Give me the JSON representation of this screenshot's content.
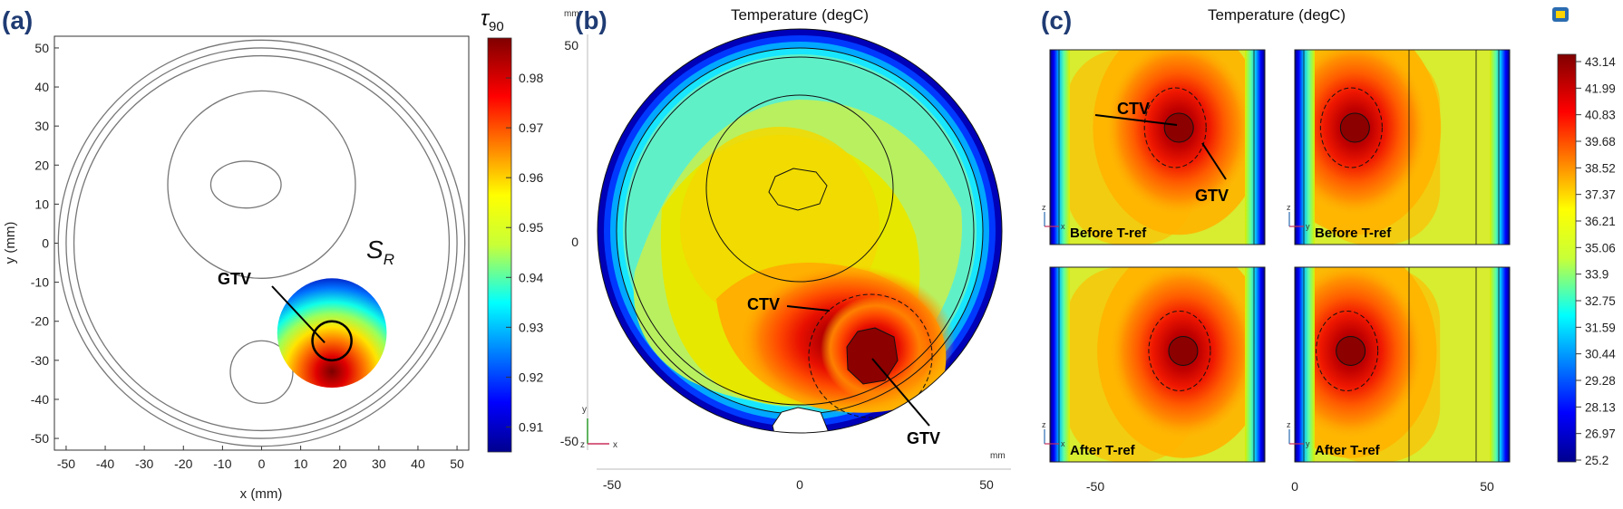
{
  "panels": {
    "a": {
      "letter": "(a)",
      "xlabel": "x (mm)",
      "ylabel": "y (mm)",
      "xticks": [
        -50,
        -40,
        -30,
        -20,
        -10,
        0,
        10,
        20,
        30,
        40,
        50
      ],
      "yticks": [
        50,
        40,
        30,
        20,
        10,
        0,
        -10,
        -20,
        -30,
        -40,
        -50
      ],
      "xlim": [
        -53,
        53
      ],
      "ylim": [
        -53,
        53
      ],
      "gtv_label": "GTV",
      "region_label": "S",
      "region_sub": "R",
      "colorbar": {
        "title": "τ",
        "title_sub": "90",
        "ticks": [
          0.98,
          0.97,
          0.96,
          0.95,
          0.94,
          0.93,
          0.92,
          0.91
        ],
        "range": [
          0.905,
          0.988
        ]
      }
    },
    "b": {
      "letter": "(b)",
      "title": "Temperature (degC)",
      "unit": "mm",
      "yticks": [
        50,
        0,
        -50
      ],
      "xticks": [
        -50,
        0,
        50
      ],
      "ctv_label": "CTV",
      "gtv_label": "GTV",
      "axis_y": "y",
      "axis_z": "z",
      "axis_x": "x"
    },
    "c": {
      "letter": "(c)",
      "title": "Temperature (degC)",
      "xticks": [
        -50,
        0,
        50
      ],
      "ctv_label": "CTV",
      "gtv_label": "GTV",
      "subplots": [
        {
          "label": "Before T-ref",
          "axis_h": "x",
          "axis_v": "z"
        },
        {
          "label": "Before T-ref",
          "axis_h": "y",
          "axis_v": "z"
        },
        {
          "label": "After T-ref",
          "axis_h": "x",
          "axis_v": "z"
        },
        {
          "label": "After T-ref",
          "axis_h": "y",
          "axis_v": "z"
        }
      ],
      "colorbar": {
        "ticks": [
          "43.14",
          "41.99",
          "40.83",
          "39.68",
          "38.52",
          "37.37",
          "36.21",
          "35.06",
          "33.9",
          "32.75",
          "31.59",
          "30.44",
          "29.28",
          "28.13",
          "26.97",
          "25.2"
        ]
      }
    }
  },
  "chart_data": [
    {
      "type": "scatter",
      "panel": "a",
      "xlabel": "x (mm)",
      "ylabel": "y (mm)",
      "xlim": [
        -53,
        53
      ],
      "ylim": [
        -53,
        53
      ],
      "colorbar_label": "τ90",
      "colorbar_range": [
        0.905,
        0.988
      ],
      "outlines": [
        {
          "shape": "circle",
          "center": [
            0,
            0
          ],
          "radius": 52
        },
        {
          "shape": "circle",
          "center": [
            0,
            0
          ],
          "radius": 50
        },
        {
          "shape": "circle",
          "center": [
            0,
            0
          ],
          "radius": 48
        },
        {
          "shape": "circle",
          "center": [
            0,
            15
          ],
          "radius": 24
        },
        {
          "shape": "ellipse",
          "center": [
            -4,
            15
          ],
          "rx": 9,
          "ry": 6
        },
        {
          "shape": "circle",
          "center": [
            0,
            -33
          ],
          "radius": 8
        }
      ],
      "gtv": {
        "center": [
          18,
          -25
        ],
        "radius": 5
      },
      "region": {
        "center": [
          18,
          -23
        ],
        "radius": 14
      }
    },
    {
      "type": "heatmap",
      "panel": "b",
      "title": "Temperature (degC)",
      "xticks": [
        -50,
        0,
        50
      ],
      "yticks": [
        -50,
        0,
        50
      ]
    },
    {
      "type": "heatmap",
      "panel": "c",
      "title": "Temperature (degC)",
      "xticks": [
        -50,
        0,
        50
      ],
      "colorbar_ticks": [
        43.14,
        41.99,
        40.83,
        39.68,
        38.52,
        37.37,
        36.21,
        35.06,
        33.9,
        32.75,
        31.59,
        30.44,
        29.28,
        28.13,
        26.97,
        25.2
      ],
      "subplots": [
        "Before T-ref",
        "Before T-ref",
        "After T-ref",
        "After T-ref"
      ]
    }
  ],
  "colors": {
    "panel_letter": "#1f3b73",
    "jet_low": "#00008f",
    "jet_high": "#800000"
  }
}
